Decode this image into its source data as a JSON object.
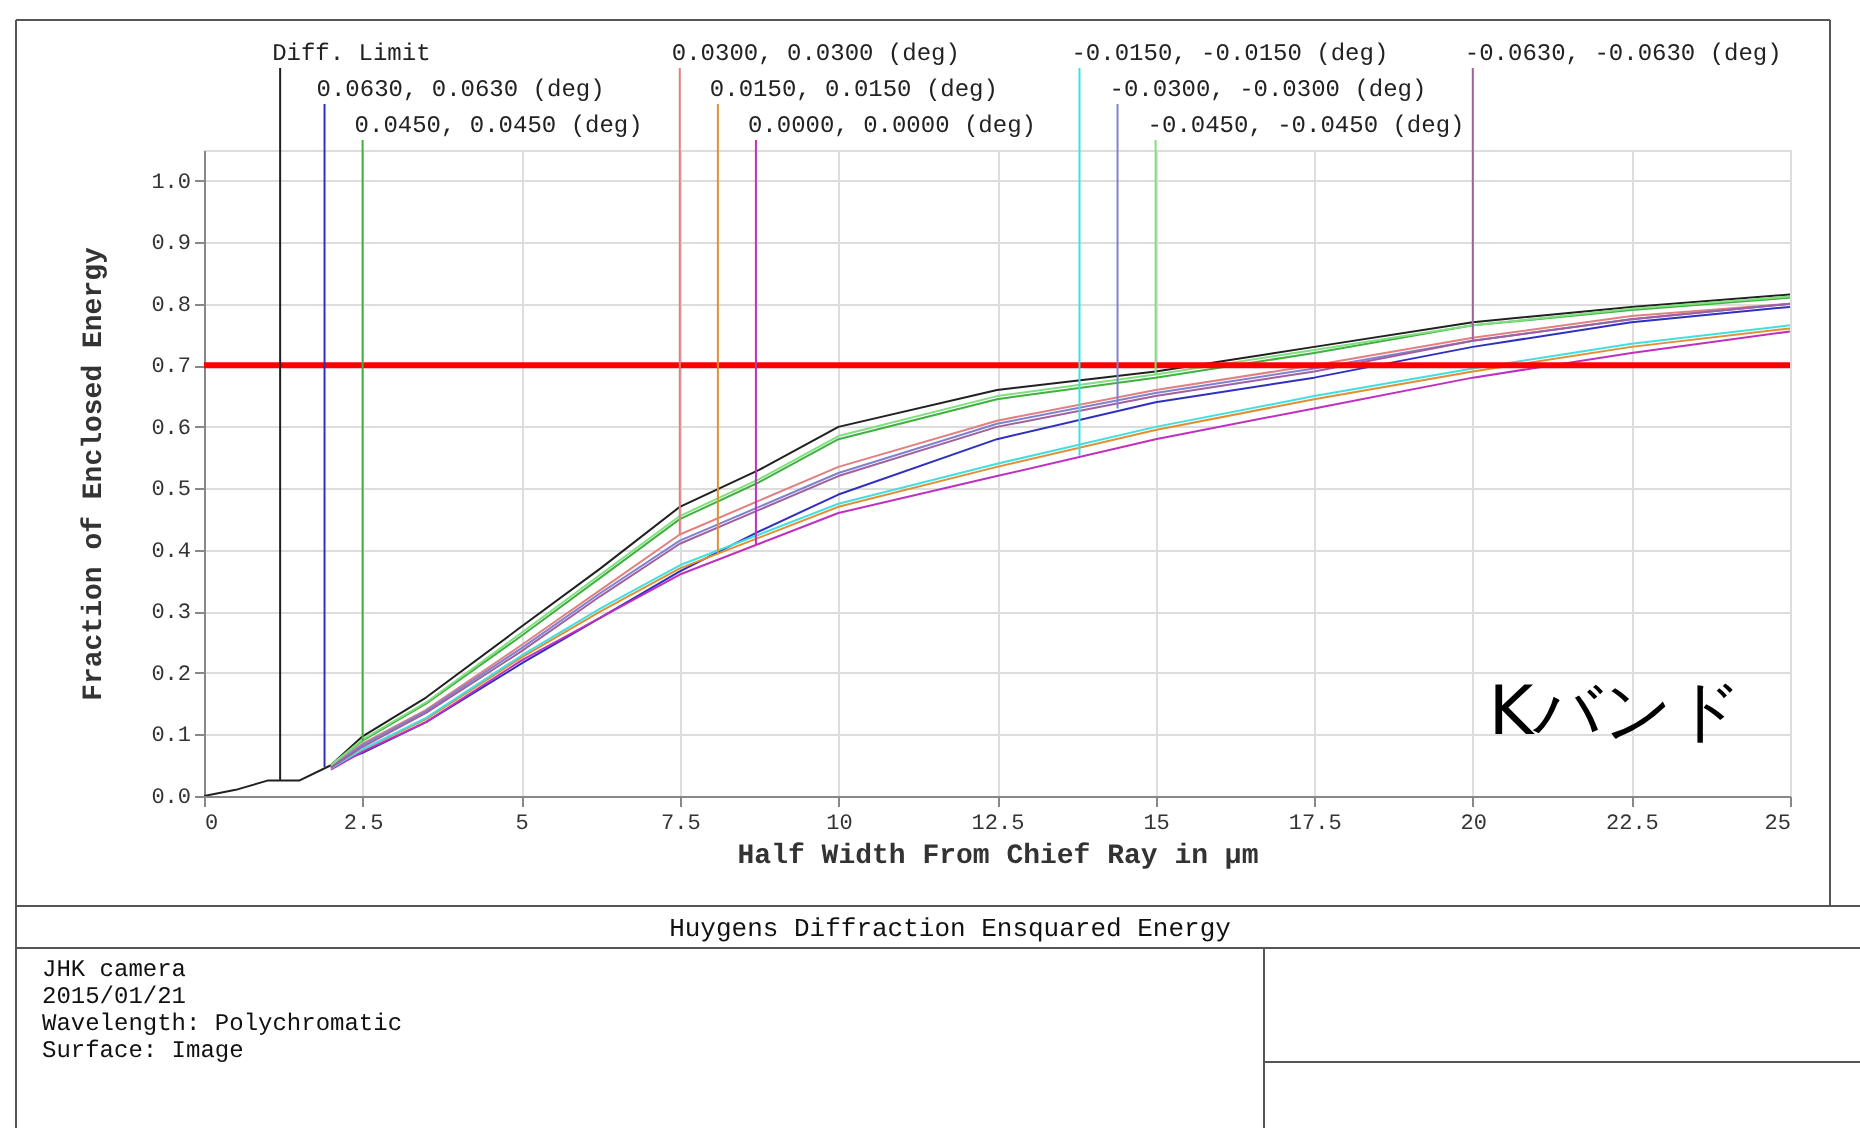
{
  "chart_data": {
    "type": "line",
    "title": "Huygens Diffraction Ensquared Energy",
    "xlabel": "Half Width From Chief Ray in µm",
    "ylabel": "Fraction of Enclosed Energy",
    "x": [
      0,
      0.5,
      1,
      1.5,
      2,
      2.5,
      3.5,
      5,
      6.25,
      7.5,
      8.75,
      10,
      12.5,
      15,
      17.5,
      20,
      22.5,
      25
    ],
    "series": [
      {
        "color": "#202020",
        "values": [
          0,
          0.01,
          0.025,
          0.025,
          0.05,
          0.097,
          0.16,
          0.275,
          0.37,
          0.47,
          0.53,
          0.6,
          0.66,
          0.69,
          0.73,
          0.77,
          0.795,
          0.815
        ]
      },
      {
        "color": "#3030c0",
        "values": [
          null,
          null,
          null,
          null,
          0.05,
          0.07,
          0.12,
          0.215,
          0.29,
          0.365,
          0.43,
          0.49,
          0.58,
          0.64,
          0.68,
          0.73,
          0.77,
          0.795
        ]
      },
      {
        "color": "#40b040",
        "values": [
          null,
          null,
          null,
          null,
          0.05,
          0.09,
          0.15,
          0.26,
          0.355,
          0.45,
          0.51,
          0.58,
          0.645,
          0.68,
          0.72,
          0.765,
          0.79,
          0.81
        ]
      },
      {
        "color": "#e08080",
        "values": [
          null,
          null,
          null,
          null,
          0.048,
          0.085,
          0.14,
          0.245,
          0.335,
          0.425,
          0.48,
          0.535,
          0.61,
          0.66,
          0.7,
          0.745,
          0.78,
          0.8
        ]
      },
      {
        "color": "#e09030",
        "values": [
          null,
          null,
          null,
          null,
          0.045,
          0.075,
          0.125,
          0.225,
          0.3,
          0.37,
          0.42,
          0.47,
          0.535,
          0.595,
          0.645,
          0.69,
          0.73,
          0.76
        ]
      },
      {
        "color": "#c030c0",
        "values": [
          null,
          null,
          null,
          null,
          0.043,
          0.072,
          0.12,
          0.22,
          0.29,
          0.36,
          0.41,
          0.46,
          0.52,
          0.58,
          0.63,
          0.68,
          0.72,
          0.755
        ]
      },
      {
        "color": "#40e0e0",
        "values": [
          null,
          null,
          null,
          null,
          0.045,
          0.076,
          0.127,
          0.228,
          0.305,
          0.375,
          0.425,
          0.475,
          0.54,
          0.6,
          0.65,
          0.695,
          0.735,
          0.765
        ]
      },
      {
        "color": "#8080d0",
        "values": [
          null,
          null,
          null,
          null,
          0.047,
          0.083,
          0.138,
          0.24,
          0.33,
          0.415,
          0.47,
          0.525,
          0.605,
          0.655,
          0.695,
          0.74,
          0.775,
          0.8
        ]
      },
      {
        "color": "#80e080",
        "values": [
          null,
          null,
          null,
          null,
          0.05,
          0.092,
          0.152,
          0.265,
          0.36,
          0.455,
          0.515,
          0.585,
          0.65,
          0.685,
          0.725,
          0.765,
          0.792,
          0.812
        ]
      },
      {
        "color": "#a060a0",
        "values": [
          null,
          null,
          null,
          null,
          0.046,
          0.08,
          0.135,
          0.235,
          0.325,
          0.41,
          0.465,
          0.52,
          0.6,
          0.65,
          0.69,
          0.74,
          0.775,
          0.8
        ]
      }
    ],
    "xlim": [
      0,
      25
    ],
    "xticks": [
      0,
      2.5,
      5,
      7.5,
      10,
      12.5,
      15,
      17.5,
      20,
      22.5,
      25
    ],
    "ylim": [
      0,
      1.05
    ],
    "yticks": [
      {
        "value": 0,
        "label": "0.0"
      },
      0.1,
      0.2,
      0.3,
      0.4,
      0.5,
      0.6,
      0.7,
      0.8,
      0.9,
      {
        "value": 1,
        "label": "1.0"
      }
    ],
    "grid": true,
    "ref_lines": [
      {
        "axis": "y",
        "value": 0.7,
        "color": "#ff0000"
      }
    ],
    "annotations": [
      {
        "text": "Diff. Limit",
        "x": 1.2,
        "y": 0.025
      },
      {
        "text": "0.0630, 0.0630 (deg)",
        "x": 1.9,
        "y": 0.047
      },
      {
        "text": "0.0450, 0.0450 (deg)",
        "x": 2.5,
        "y": 0.09
      },
      {
        "text": "0.0300, 0.0300 (deg)",
        "x": 7.5,
        "y": 0.425
      },
      {
        "text": "0.0150, 0.0150 (deg)",
        "x": 8.1,
        "y": 0.395
      },
      {
        "text": "0.0000, 0.0000 (deg)",
        "x": 8.7,
        "y": 0.408
      },
      {
        "text": "-0.0150, -0.0150 (deg)",
        "x": 13.8,
        "y": 0.553
      },
      {
        "text": "-0.0300, -0.0300 (deg)",
        "x": 14.4,
        "y": 0.63
      },
      {
        "text": "-0.0450, -0.0450 (deg)",
        "x": 15,
        "y": 0.685
      },
      {
        "text": "-0.0630, -0.0630 (deg)",
        "x": 20,
        "y": 0.74
      },
      "Kバンド",
      "JHK camera",
      "2015/01/21",
      "Wavelength: Polychromatic",
      "Surface: Image"
    ]
  }
}
